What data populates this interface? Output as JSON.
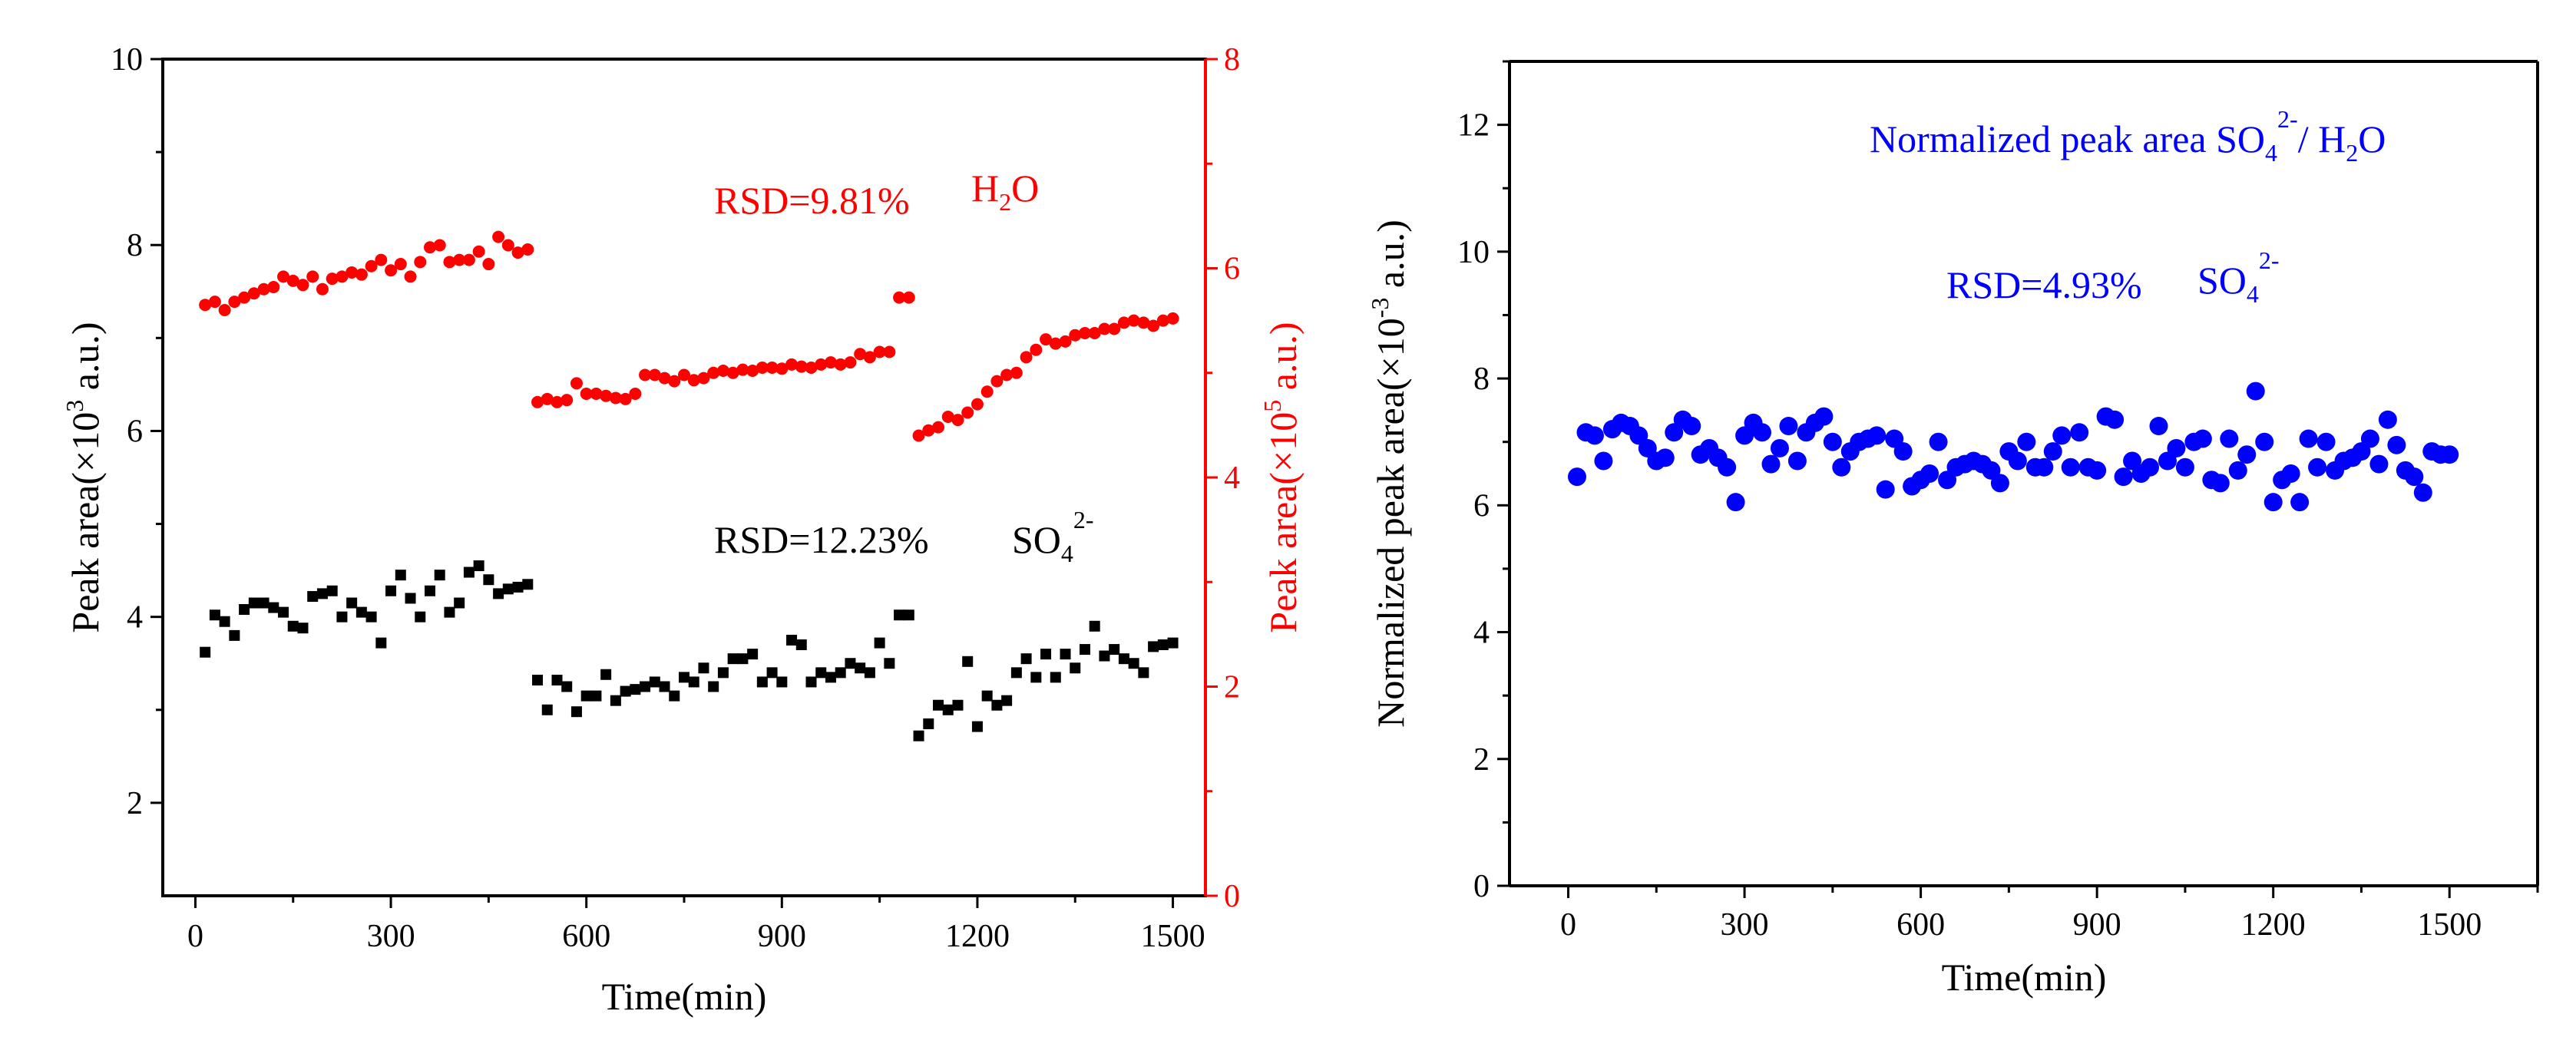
{
  "colors": {
    "black": "#000000",
    "red": "#ff0000",
    "blue": "#0000ff"
  },
  "chart_data": [
    {
      "type": "scatter",
      "x_axis": {
        "label": "Time(min)",
        "range": [
          -50,
          1550
        ],
        "ticks": [
          0,
          300,
          600,
          900,
          1200,
          1500
        ],
        "tick_labels": [
          "0",
          "300",
          "600",
          "900",
          "1200",
          "1500"
        ]
      },
      "y_left": {
        "label_main": "Peak area(×10",
        "label_sup": "3",
        "label_tail": " a.u.)",
        "range": [
          1,
          10
        ],
        "ticks": [
          2,
          4,
          6,
          8,
          10
        ],
        "tick_labels": [
          "2",
          "4",
          "6",
          "8",
          "10"
        ]
      },
      "y_right": {
        "label_main": "Peak area(×10",
        "label_sup": "5",
        "label_tail": " a.u.)",
        "range": [
          0,
          8
        ],
        "ticks": [
          0,
          2,
          4,
          6,
          8
        ],
        "tick_labels": [
          "0",
          "2",
          "4",
          "6",
          "8"
        ]
      },
      "annotations": {
        "h2o_rsd": "RSD=9.81%",
        "h2o_prefix": "H",
        "h2o_sub": "2",
        "h2o_suffix": "O",
        "so4_rsd": "RSD=12.23%",
        "so4_prefix": "SO",
        "so4_sub": "4",
        "so4_sup": "2-"
      },
      "series": [
        {
          "name": "SO4 2- (left axis)",
          "marker": "square",
          "axis": "left",
          "x": [
            15,
            30,
            45,
            60,
            75,
            90,
            105,
            120,
            135,
            150,
            165,
            180,
            195,
            210,
            225,
            240,
            255,
            270,
            285,
            300,
            315,
            330,
            345,
            360,
            375,
            390,
            405,
            420,
            435,
            450,
            465,
            480,
            495,
            510,
            525,
            540,
            555,
            570,
            585,
            600,
            615,
            630,
            645,
            660,
            675,
            690,
            705,
            720,
            735,
            750,
            765,
            780,
            795,
            810,
            825,
            840,
            855,
            870,
            885,
            900,
            915,
            930,
            945,
            960,
            975,
            990,
            1005,
            1020,
            1035,
            1050,
            1065,
            1080,
            1095,
            1110,
            1125,
            1140,
            1155,
            1170,
            1185,
            1200,
            1215,
            1230,
            1245,
            1260,
            1275,
            1290,
            1305,
            1320,
            1335,
            1350,
            1365,
            1380,
            1395,
            1410,
            1425,
            1440,
            1455,
            1470,
            1485,
            1500
          ],
          "y": [
            3.62,
            4.02,
            3.95,
            3.8,
            4.08,
            4.15,
            4.15,
            4.1,
            4.05,
            3.9,
            3.88,
            4.22,
            4.25,
            4.28,
            4.0,
            4.15,
            4.05,
            4.0,
            3.72,
            4.28,
            4.45,
            4.2,
            4.0,
            4.28,
            4.45,
            4.05,
            4.15,
            4.48,
            4.55,
            4.4,
            4.25,
            4.3,
            4.32,
            4.35,
            3.32,
            3.0,
            3.32,
            3.25,
            2.98,
            3.15,
            3.15,
            3.38,
            3.1,
            3.2,
            3.22,
            3.25,
            3.3,
            3.25,
            3.15,
            3.35,
            3.3,
            3.45,
            3.25,
            3.4,
            3.55,
            3.55,
            3.6,
            3.3,
            3.4,
            3.3,
            3.75,
            3.7,
            3.3,
            3.4,
            3.35,
            3.4,
            3.5,
            3.45,
            3.4,
            3.72,
            3.5,
            4.02,
            4.02,
            2.72,
            2.85,
            3.05,
            3.0,
            3.05,
            3.52,
            2.82,
            3.15,
            3.05,
            3.1,
            3.4,
            3.55,
            3.35,
            3.6,
            3.35,
            3.6,
            3.45,
            3.65,
            3.9,
            3.58,
            3.65,
            3.55,
            3.5,
            3.4,
            3.68,
            3.7,
            3.72
          ]
        },
        {
          "name": "H2O (right axis)",
          "marker": "circle",
          "axis": "right",
          "x": [
            15,
            30,
            45,
            60,
            75,
            90,
            105,
            120,
            135,
            150,
            165,
            180,
            195,
            210,
            225,
            240,
            255,
            270,
            285,
            300,
            315,
            330,
            345,
            360,
            375,
            390,
            405,
            420,
            435,
            450,
            465,
            480,
            495,
            510,
            525,
            540,
            555,
            570,
            585,
            600,
            615,
            630,
            645,
            660,
            675,
            690,
            705,
            720,
            735,
            750,
            765,
            780,
            795,
            810,
            825,
            840,
            855,
            870,
            885,
            900,
            915,
            930,
            945,
            960,
            975,
            990,
            1005,
            1020,
            1035,
            1050,
            1065,
            1080,
            1095,
            1110,
            1125,
            1140,
            1155,
            1170,
            1185,
            1200,
            1215,
            1230,
            1245,
            1260,
            1275,
            1290,
            1305,
            1320,
            1335,
            1350,
            1365,
            1380,
            1395,
            1410,
            1425,
            1440,
            1455,
            1470,
            1485,
            1500
          ],
          "y": [
            5.65,
            5.68,
            5.6,
            5.68,
            5.72,
            5.76,
            5.8,
            5.82,
            5.92,
            5.88,
            5.84,
            5.92,
            5.8,
            5.9,
            5.92,
            5.96,
            5.94,
            6.02,
            6.08,
            5.98,
            6.04,
            5.92,
            6.06,
            6.2,
            6.22,
            6.06,
            6.08,
            6.08,
            6.16,
            6.04,
            6.3,
            6.22,
            6.15,
            6.18,
            4.72,
            4.75,
            4.72,
            4.74,
            4.9,
            4.8,
            4.8,
            4.78,
            4.76,
            4.75,
            4.8,
            4.98,
            4.98,
            4.95,
            4.92,
            4.98,
            4.93,
            4.95,
            5.0,
            5.02,
            5.0,
            5.03,
            5.02,
            5.05,
            5.05,
            5.04,
            5.08,
            5.06,
            5.05,
            5.08,
            5.1,
            5.08,
            5.1,
            5.18,
            5.15,
            5.2,
            5.2,
            5.72,
            5.72,
            4.4,
            4.45,
            4.48,
            4.58,
            4.55,
            4.62,
            4.7,
            4.82,
            4.92,
            4.98,
            5.0,
            5.15,
            5.22,
            5.32,
            5.28,
            5.3,
            5.36,
            5.38,
            5.38,
            5.42,
            5.42,
            5.48,
            5.5,
            5.48,
            5.45,
            5.5,
            5.52
          ]
        }
      ]
    },
    {
      "type": "scatter",
      "x_axis": {
        "label": "Time(min)",
        "range": [
          -100,
          1650
        ],
        "ticks": [
          0,
          300,
          600,
          900,
          1200,
          1500
        ],
        "tick_labels": [
          "0",
          "300",
          "600",
          "900",
          "1200",
          "1500"
        ]
      },
      "y_axis": {
        "label_main": "Normalized peak area(×10",
        "label_sup": "-3",
        "label_tail": " a.u.)",
        "range": [
          0,
          13
        ],
        "ticks": [
          0,
          2,
          4,
          6,
          8,
          10,
          12
        ],
        "tick_labels": [
          "0",
          "2",
          "4",
          "6",
          "8",
          "10",
          "12"
        ]
      },
      "annotations": {
        "title_prefix": "Normalized peak area SO",
        "title_sub": "4",
        "title_sup": "2-",
        "title_mid": "/ H",
        "title_sub2": "2",
        "title_suffix": "O",
        "rsd": "RSD=4.93%",
        "so4_prefix": "SO",
        "so4_sub": "4",
        "so4_sup": "2-"
      },
      "series": [
        {
          "name": "Normalized SO4 2-/H2O",
          "marker": "circle",
          "x": [
            15,
            30,
            45,
            60,
            75,
            90,
            105,
            120,
            135,
            150,
            165,
            180,
            195,
            210,
            225,
            240,
            255,
            270,
            285,
            300,
            315,
            330,
            345,
            360,
            375,
            390,
            405,
            420,
            435,
            450,
            465,
            480,
            495,
            510,
            525,
            540,
            555,
            570,
            585,
            600,
            615,
            630,
            645,
            660,
            675,
            690,
            705,
            720,
            735,
            750,
            765,
            780,
            795,
            810,
            825,
            840,
            855,
            870,
            885,
            900,
            915,
            930,
            945,
            960,
            975,
            990,
            1005,
            1020,
            1035,
            1050,
            1065,
            1080,
            1095,
            1110,
            1125,
            1140,
            1155,
            1170,
            1185,
            1200,
            1215,
            1230,
            1245,
            1260,
            1275,
            1290,
            1305,
            1320,
            1335,
            1350,
            1365,
            1380,
            1395,
            1410,
            1425,
            1440,
            1455,
            1470,
            1485,
            1500
          ],
          "y": [
            6.45,
            7.15,
            7.1,
            6.7,
            7.2,
            7.3,
            7.25,
            7.1,
            6.9,
            6.7,
            6.75,
            7.15,
            7.35,
            7.25,
            6.8,
            6.9,
            6.75,
            6.6,
            6.05,
            7.1,
            7.3,
            7.15,
            6.65,
            6.9,
            7.25,
            6.7,
            7.15,
            7.3,
            7.4,
            7.0,
            6.6,
            6.85,
            7.0,
            7.05,
            7.1,
            6.25,
            7.05,
            6.85,
            6.3,
            6.4,
            6.5,
            7.0,
            6.4,
            6.6,
            6.65,
            6.7,
            6.65,
            6.55,
            6.35,
            6.85,
            6.7,
            7.0,
            6.6,
            6.6,
            6.85,
            7.1,
            6.6,
            7.15,
            6.6,
            6.55,
            7.4,
            7.35,
            6.45,
            6.7,
            6.5,
            6.6,
            7.25,
            6.7,
            6.9,
            6.6,
            7.0,
            7.05,
            6.4,
            6.35,
            7.05,
            6.55,
            6.8,
            7.8,
            7.0,
            6.05,
            6.4,
            6.5,
            6.05,
            7.05,
            6.6,
            7.0,
            6.55,
            6.7,
            6.75,
            6.85,
            7.05,
            6.65,
            7.35,
            6.95,
            6.55,
            6.45,
            6.2,
            6.85,
            6.8,
            6.8
          ]
        }
      ]
    }
  ]
}
